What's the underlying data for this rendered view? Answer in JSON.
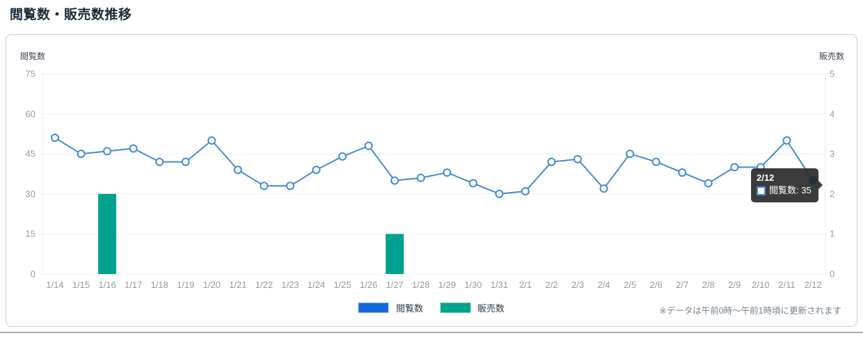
{
  "page": {
    "title": "閲覧数・販売数推移",
    "footnote": "※データは午前0時～午前1時頃に更新されます"
  },
  "chart_data": {
    "type": "line",
    "x_labels": [
      "1/14",
      "1/15",
      "1/16",
      "1/17",
      "1/18",
      "1/19",
      "1/20",
      "1/21",
      "1/22",
      "1/23",
      "1/24",
      "1/25",
      "1/26",
      "1/27",
      "1/28",
      "1/29",
      "1/30",
      "1/31",
      "2/1",
      "2/2",
      "2/3",
      "2/4",
      "2/5",
      "2/6",
      "2/7",
      "2/8",
      "2/9",
      "2/10",
      "2/11",
      "2/12"
    ],
    "series": [
      {
        "name": "閲覧数",
        "type": "line",
        "axis": "left",
        "line_color": "#4489d8",
        "marker_fill": "#ffffff",
        "hover_fill": "#1269db",
        "values": [
          51,
          45,
          46,
          47,
          42,
          42,
          50,
          39,
          33,
          33,
          39,
          44,
          48,
          35,
          36,
          38,
          34,
          30,
          31,
          42,
          43,
          32,
          45,
          42,
          38,
          34,
          40,
          40,
          50,
          35
        ]
      },
      {
        "name": "販売数",
        "type": "bar",
        "axis": "right",
        "color": "#00a18f",
        "bars": [
          {
            "label": "1/16",
            "value": 2
          },
          {
            "label": "1/27",
            "value": 1
          }
        ]
      }
    ],
    "left_axis": {
      "title": "閲覧数",
      "min": 0,
      "max": 75,
      "ticks": [
        75,
        60,
        45,
        30,
        15,
        0
      ]
    },
    "right_axis": {
      "title": "販売数",
      "min": 0,
      "max": 5,
      "ticks": [
        5,
        4,
        3,
        2,
        1,
        0
      ]
    },
    "grid": "horizontal",
    "legend": [
      {
        "label": "閲覧数",
        "color": "#1269db"
      },
      {
        "label": "販売数",
        "color": "#00a18f"
      }
    ],
    "tooltip": {
      "title": "2/12",
      "series": "閲覧数",
      "value": 35,
      "text": "閲覧数: 35"
    }
  }
}
